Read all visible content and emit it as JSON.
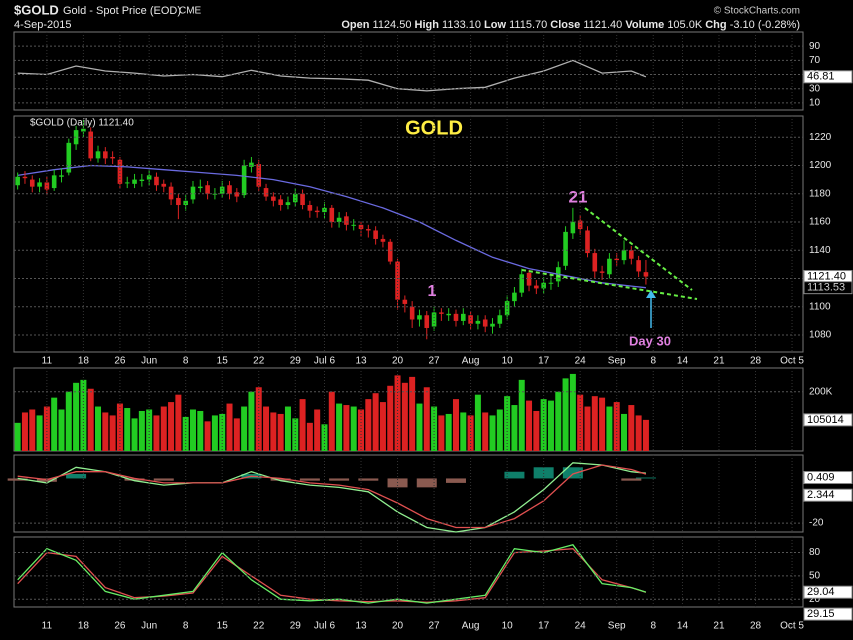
{
  "header": {
    "symbol": "$GOLD",
    "name": "Gold - Spot Price (EOD)",
    "exchange": "CME",
    "source": "© StockCharts.com",
    "date": "4-Sep-2015",
    "quote": [
      {
        "label": "Open",
        "value": "1124.50"
      },
      {
        "label": "High",
        "value": "1133.10"
      },
      {
        "label": "Low",
        "value": "1115.70"
      },
      {
        "label": "Close",
        "value": "1121.40"
      },
      {
        "label": "Volume",
        "value": "105.0K"
      },
      {
        "label": "Chg",
        "value": "-3.10 (-0.28%)"
      }
    ]
  },
  "chart_data": [
    {
      "type": "line",
      "ylim": [
        0,
        110
      ],
      "yticks": [
        90,
        70,
        50,
        30,
        10
      ],
      "grid": true,
      "series": [
        {
          "color": "#b0b0b0",
          "x": [
            0,
            4,
            8,
            12,
            16,
            20,
            24,
            28,
            32,
            36,
            40,
            44,
            48,
            52,
            56,
            60,
            64,
            68,
            72,
            76,
            80,
            84,
            86
          ],
          "values": [
            52,
            50,
            62,
            55,
            52,
            48,
            50,
            47,
            56,
            48,
            45,
            44,
            42,
            30,
            27,
            30,
            32,
            45,
            55,
            70,
            52,
            55,
            46.81
          ],
          "last_label": "46.81"
        }
      ]
    },
    {
      "type": "candlestick",
      "title": "GOLD",
      "legend": "$GOLD (Daily) 1121.40",
      "up_color": "#22cc22",
      "down_color": "#dd2222",
      "last_label": "1121.40",
      "ylim": [
        1068,
        1235
      ],
      "yticks": [
        1080,
        1100,
        1120,
        1140,
        1160,
        1180,
        1200,
        1220
      ],
      "grid": true,
      "xlim": [
        -0.5,
        107.5
      ],
      "xticks": [
        {
          "value": 4,
          "label": "11"
        },
        {
          "value": 9,
          "label": "18"
        },
        {
          "value": 14,
          "label": "26"
        },
        {
          "value": 18,
          "label": "Jun"
        },
        {
          "value": 23,
          "label": "8"
        },
        {
          "value": 28,
          "label": "15"
        },
        {
          "value": 33,
          "label": "22"
        },
        {
          "value": 38,
          "label": "29"
        },
        {
          "value": 42,
          "label": "Jul 6"
        },
        {
          "value": 47,
          "label": "13"
        },
        {
          "value": 52,
          "label": "20"
        },
        {
          "value": 57,
          "label": "27"
        },
        {
          "value": 62,
          "label": "Aug"
        },
        {
          "value": 67,
          "label": "10"
        },
        {
          "value": 72,
          "label": "17"
        },
        {
          "value": 77,
          "label": "24"
        },
        {
          "value": 82,
          "label": "Sep"
        },
        {
          "value": 87,
          "label": "8"
        },
        {
          "value": 91,
          "label": "14"
        },
        {
          "value": 96,
          "label": "21"
        },
        {
          "value": 101,
          "label": "28"
        },
        {
          "value": 106,
          "label": "Oct 5"
        }
      ],
      "open": [
        1186,
        1192,
        1190,
        1185,
        1188,
        1184,
        1192,
        1195,
        1215,
        1224,
        1224,
        1205,
        1210,
        1206,
        1204,
        1188,
        1187,
        1189,
        1190,
        1192,
        1187,
        1185,
        1177,
        1172,
        1176,
        1184,
        1186,
        1180,
        1180,
        1186,
        1181,
        1179,
        1199,
        1201,
        1184,
        1178,
        1176,
        1172,
        1174,
        1180,
        1172,
        1168,
        1167,
        1170,
        1160,
        1164,
        1158,
        1158,
        1155,
        1154,
        1148,
        1146,
        1132,
        1105,
        1100,
        1091,
        1094,
        1086,
        1096,
        1094,
        1095,
        1090,
        1094,
        1088,
        1091,
        1086,
        1088,
        1094,
        1104,
        1110,
        1124,
        1115,
        1113,
        1117,
        1118,
        1129,
        1152,
        1161,
        1154,
        1138,
        1125,
        1123,
        1134,
        1133,
        1140,
        1133,
        1124.5
      ],
      "high": [
        1195,
        1196,
        1193,
        1191,
        1192,
        1197,
        1198,
        1219,
        1228,
        1232,
        1227,
        1214,
        1213,
        1210,
        1206,
        1192,
        1194,
        1194,
        1197,
        1195,
        1190,
        1188,
        1180,
        1179,
        1189,
        1190,
        1189,
        1184,
        1189,
        1189,
        1184,
        1204,
        1206,
        1204,
        1187,
        1181,
        1179,
        1178,
        1184,
        1183,
        1175,
        1171,
        1174,
        1172,
        1167,
        1167,
        1162,
        1160,
        1158,
        1157,
        1151,
        1148,
        1134,
        1108,
        1104,
        1098,
        1097,
        1100,
        1099,
        1099,
        1098,
        1099,
        1097,
        1094,
        1094,
        1092,
        1098,
        1108,
        1114,
        1127,
        1126,
        1119,
        1121,
        1122,
        1132,
        1157,
        1170,
        1165,
        1157,
        1141,
        1129,
        1138,
        1138,
        1147,
        1143,
        1136,
        1133.1
      ],
      "low": [
        1183,
        1187,
        1181,
        1181,
        1179,
        1182,
        1188,
        1193,
        1211,
        1220,
        1203,
        1202,
        1201,
        1201,
        1184,
        1184,
        1184,
        1185,
        1186,
        1182,
        1181,
        1172,
        1162,
        1168,
        1173,
        1181,
        1176,
        1176,
        1177,
        1176,
        1174,
        1177,
        1195,
        1182,
        1175,
        1171,
        1168,
        1169,
        1171,
        1169,
        1163,
        1163,
        1162,
        1156,
        1156,
        1154,
        1154,
        1150,
        1149,
        1144,
        1142,
        1130,
        1098,
        1096,
        1085,
        1086,
        1077,
        1083,
        1090,
        1090,
        1086,
        1087,
        1084,
        1084,
        1082,
        1081,
        1085,
        1091,
        1100,
        1107,
        1111,
        1109,
        1109,
        1112,
        1114,
        1126,
        1148,
        1151,
        1135,
        1120,
        1119,
        1120,
        1129,
        1130,
        1130,
        1121,
        1115.7
      ],
      "close": [
        1192,
        1191,
        1185,
        1188,
        1183,
        1193,
        1193,
        1216,
        1225,
        1226,
        1205,
        1210,
        1205,
        1205,
        1187,
        1188,
        1190,
        1190,
        1193,
        1186,
        1185,
        1176,
        1172,
        1175,
        1185,
        1185,
        1180,
        1180,
        1185,
        1180,
        1178,
        1200,
        1202,
        1185,
        1178,
        1175,
        1172,
        1174,
        1180,
        1172,
        1168,
        1167,
        1170,
        1160,
        1163,
        1158,
        1158,
        1155,
        1154,
        1148,
        1146,
        1132,
        1105,
        1102,
        1091,
        1094,
        1085,
        1096,
        1095,
        1095,
        1090,
        1095,
        1088,
        1090,
        1086,
        1088,
        1094,
        1104,
        1110,
        1123,
        1115,
        1113,
        1117,
        1117,
        1128,
        1153,
        1160,
        1155,
        1138,
        1125,
        1124,
        1134,
        1133,
        1140,
        1134,
        1125,
        1121.4
      ],
      "ma": {
        "color": "#6a6ae0",
        "x": [
          0,
          5,
          10,
          15,
          20,
          25,
          30,
          35,
          40,
          45,
          50,
          55,
          60,
          65,
          70,
          75,
          80,
          86
        ],
        "values": [
          1193,
          1197,
          1200,
          1199,
          1197,
          1195,
          1193,
          1190,
          1185,
          1178,
          1170,
          1160,
          1147,
          1135,
          1127,
          1122,
          1117,
          1113.53
        ],
        "last_label": "1113.53"
      },
      "annotations": [
        {
          "text": "21",
          "color": "#e080e0"
        },
        {
          "text": "1",
          "color": "#e080e0"
        },
        {
          "text": "Day 30",
          "color": "#e080e0"
        }
      ]
    },
    {
      "type": "bar",
      "ylim": [
        0,
        280000
      ],
      "yticks": [
        {
          "value": 200000,
          "label": "200K"
        }
      ],
      "grid": true,
      "last_label": "105014",
      "values": [
        95000,
        130000,
        140000,
        120000,
        150000,
        180000,
        140000,
        200000,
        230000,
        240000,
        210000,
        150000,
        130000,
        120000,
        160000,
        145000,
        110000,
        135000,
        140000,
        120000,
        150000,
        165000,
        190000,
        115000,
        140000,
        135000,
        100000,
        120000,
        125000,
        160000,
        110000,
        150000,
        200000,
        215000,
        150000,
        130000,
        125000,
        150000,
        110000,
        175000,
        95000,
        140000,
        90000,
        200000,
        160000,
        155000,
        150000,
        140000,
        175000,
        195000,
        165000,
        220000,
        255000,
        230000,
        250000,
        160000,
        215000,
        150000,
        120000,
        125000,
        175000,
        130000,
        120000,
        190000,
        130000,
        120000,
        140000,
        185000,
        155000,
        240000,
        170000,
        135000,
        175000,
        170000,
        200000,
        245000,
        260000,
        190000,
        150000,
        185000,
        180000,
        150000,
        165000,
        125000,
        155000,
        120000,
        105014
      ]
    },
    {
      "type": "line",
      "ylim": [
        -24,
        10.5
      ],
      "yticks": [
        -20
      ],
      "grid": true,
      "series": [
        {
          "type": "bar",
          "color": "#0f7f6a",
          "neg_color": "#8a5a50",
          "x": [
            0,
            4,
            8,
            12,
            16,
            20,
            24,
            28,
            32,
            36,
            40,
            44,
            48,
            52,
            56,
            60,
            64,
            68,
            72,
            76,
            80,
            84,
            86
          ],
          "values": [
            -1,
            -1.5,
            2,
            0,
            -1,
            -1,
            0,
            0,
            2,
            -1,
            -1,
            -1,
            -1,
            -4,
            -4,
            -2,
            0,
            3,
            5,
            5,
            0,
            -1,
            0.409
          ],
          "last_label": "0.409"
        },
        {
          "color": "#90ee90",
          "x": [
            0,
            4,
            8,
            12,
            16,
            20,
            24,
            28,
            32,
            36,
            40,
            44,
            48,
            52,
            56,
            60,
            64,
            68,
            72,
            76,
            80,
            84,
            86
          ],
          "values": [
            0,
            -2,
            5,
            3,
            -1,
            -3,
            -2,
            -2,
            3,
            -1,
            -3,
            -4,
            -6,
            -15,
            -22,
            -24,
            -22,
            -15,
            -5,
            7,
            6,
            3,
            2.344
          ],
          "last_label": "2.344"
        },
        {
          "color": "#e05050",
          "x": [
            0,
            4,
            8,
            12,
            16,
            20,
            24,
            28,
            32,
            36,
            40,
            44,
            48,
            52,
            56,
            60,
            64,
            68,
            72,
            76,
            80,
            84,
            86
          ],
          "values": [
            1,
            -0.5,
            3,
            3,
            0,
            -2,
            -2,
            -2,
            1,
            0,
            -2,
            -3,
            -5,
            -11,
            -18,
            -22,
            -22,
            -18,
            -10,
            2,
            6,
            4,
            1.935
          ]
        }
      ]
    },
    {
      "type": "line",
      "ylim": [
        10,
        100
      ],
      "yticks": [
        80,
        50,
        20
      ],
      "grid": true,
      "series": [
        {
          "color": "#e05050",
          "x": [
            0,
            4,
            8,
            12,
            16,
            20,
            24,
            28,
            32,
            36,
            40,
            44,
            48,
            52,
            56,
            60,
            64,
            68,
            72,
            76,
            80,
            84,
            86
          ],
          "values": [
            40,
            80,
            75,
            35,
            22,
            24,
            28,
            75,
            50,
            25,
            20,
            18,
            17,
            18,
            16,
            18,
            22,
            80,
            82,
            85,
            45,
            35,
            29.04
          ],
          "last_label": "29.04"
        },
        {
          "color": "#66ee66",
          "x": [
            0,
            4,
            8,
            12,
            16,
            20,
            24,
            28,
            32,
            36,
            40,
            44,
            48,
            52,
            56,
            60,
            64,
            68,
            72,
            76,
            80,
            84,
            86
          ],
          "values": [
            45,
            85,
            70,
            30,
            20,
            25,
            30,
            80,
            45,
            20,
            18,
            20,
            15,
            20,
            15,
            20,
            25,
            85,
            80,
            90,
            40,
            35,
            29.15
          ],
          "last_label": "29.15"
        }
      ]
    }
  ]
}
